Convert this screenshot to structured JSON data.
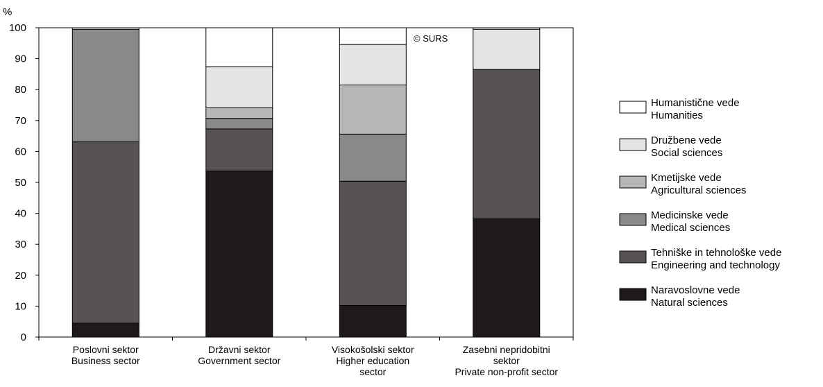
{
  "chart_data": {
    "type": "bar",
    "stacked": true,
    "percent_stacked": true,
    "y_unit": "%",
    "ylim": [
      0,
      100
    ],
    "yticks": [
      0,
      10,
      20,
      30,
      40,
      50,
      60,
      70,
      80,
      90,
      100
    ],
    "grid": false,
    "legend_position": "right",
    "watermark": "© SURS",
    "categories": [
      [
        "Poslovni sektor",
        "Business sector"
      ],
      [
        "Državni sektor",
        "Government sector"
      ],
      [
        "Visokošolski sektor",
        "Higher education",
        "sector"
      ],
      [
        "Zasebni nepridobitni",
        "sektor",
        "Private non-profit sector"
      ]
    ],
    "series": [
      {
        "name": "Naravoslovne vede",
        "name_en": "Natural sciences",
        "color": "#1e1a1a",
        "values": [
          4.5,
          53.7,
          10.2,
          38.2
        ]
      },
      {
        "name": "Tehniške in tehnološke vede",
        "name_en": "Engineering and technology",
        "color": "#575353",
        "values": [
          58.6,
          13.6,
          40.2,
          48.3
        ]
      },
      {
        "name": "Medicinske vede",
        "name_en": "Medical sciences",
        "color": "#8a8888",
        "values": [
          36.4,
          3.4,
          15.2,
          0
        ]
      },
      {
        "name": "Kmetijske vede",
        "name_en": "Agricultural sciences",
        "color": "#b6b6b6",
        "values": [
          0,
          3.4,
          15.9,
          0
        ]
      },
      {
        "name": "Družbene vede",
        "name_en": "Social sciences",
        "color": "#e4e4e4",
        "values": [
          0,
          13.3,
          13.1,
          13.0
        ]
      },
      {
        "name": "Humanistične vede",
        "name_en": "Humanities",
        "color": "#ffffff",
        "values": [
          0.5,
          12.6,
          5.4,
          0.5
        ]
      }
    ]
  }
}
